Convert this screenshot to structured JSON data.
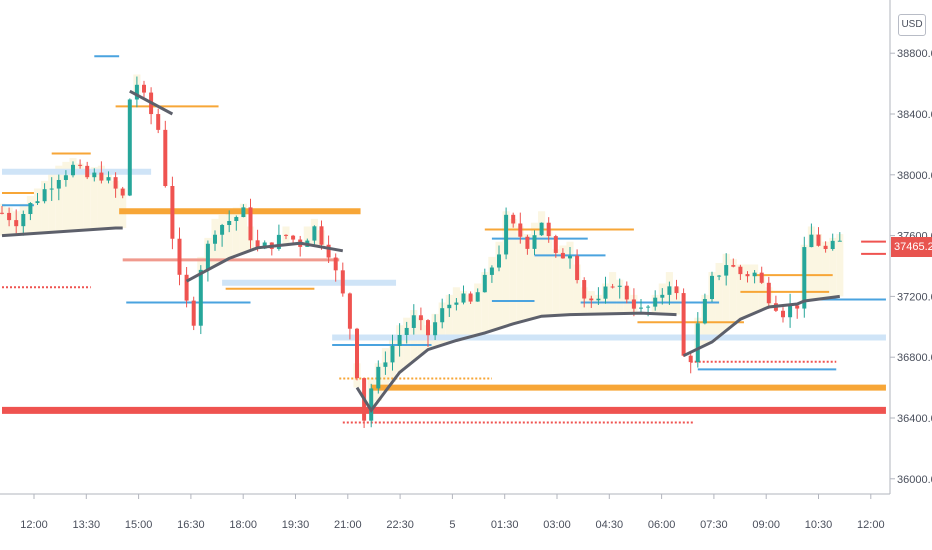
{
  "chart_data": {
    "type": "candlestick",
    "currency": "USD",
    "last_price": "37465.22",
    "ylim": [
      35900,
      39150
    ],
    "y_ticks": [
      "36000.00",
      "36400.00",
      "36800.00",
      "37200.00",
      "37600.00",
      "38000.00",
      "38400.00",
      "38800.00"
    ],
    "x_ticks": [
      "12:00",
      "13:30",
      "15:00",
      "16:30",
      "18:00",
      "19:30",
      "21:00",
      "22:30",
      "5",
      "01:30",
      "03:00",
      "04:30",
      "06:00",
      "07:30",
      "09:00",
      "10:30",
      "12:00"
    ],
    "close_path": [
      [
        0,
        37750
      ],
      [
        2,
        37700
      ],
      [
        4,
        37800
      ],
      [
        6,
        37900
      ],
      [
        8,
        38000
      ],
      [
        10,
        38050
      ],
      [
        12,
        37980
      ],
      [
        14,
        38000
      ],
      [
        16,
        37900
      ],
      [
        17,
        37850
      ],
      [
        18,
        38500
      ],
      [
        19,
        38600
      ],
      [
        20,
        38500
      ],
      [
        22,
        38300
      ],
      [
        24,
        37600
      ],
      [
        25,
        37300
      ],
      [
        26,
        37150
      ],
      [
        27,
        37050
      ],
      [
        28,
        37400
      ],
      [
        30,
        37650
      ],
      [
        32,
        37700
      ],
      [
        34,
        37750
      ],
      [
        35,
        37600
      ],
      [
        36,
        37500
      ],
      [
        38,
        37550
      ],
      [
        40,
        37600
      ],
      [
        42,
        37550
      ],
      [
        44,
        37650
      ],
      [
        46,
        37500
      ],
      [
        48,
        37200
      ],
      [
        49,
        37000
      ],
      [
        50,
        36700
      ],
      [
        51,
        36400
      ],
      [
        52,
        36600
      ],
      [
        54,
        36800
      ],
      [
        56,
        36950
      ],
      [
        58,
        37050
      ],
      [
        60,
        36950
      ],
      [
        62,
        37100
      ],
      [
        64,
        37200
      ],
      [
        66,
        37150
      ],
      [
        68,
        37300
      ],
      [
        70,
        37500
      ],
      [
        71,
        37700
      ],
      [
        72,
        37650
      ],
      [
        74,
        37550
      ],
      [
        76,
        37700
      ],
      [
        78,
        37450
      ],
      [
        80,
        37500
      ],
      [
        82,
        37200
      ],
      [
        84,
        37150
      ],
      [
        86,
        37300
      ],
      [
        88,
        37200
      ],
      [
        90,
        37100
      ],
      [
        92,
        37150
      ],
      [
        94,
        37300
      ],
      [
        95,
        37200
      ],
      [
        96,
        36800
      ],
      [
        97,
        36800
      ],
      [
        98,
        37000
      ],
      [
        100,
        37300
      ],
      [
        102,
        37420
      ],
      [
        104,
        37350
      ],
      [
        106,
        37350
      ],
      [
        108,
        37200
      ],
      [
        110,
        37100
      ],
      [
        112,
        37150
      ],
      [
        113,
        37480
      ],
      [
        114,
        37600
      ],
      [
        116,
        37500
      ],
      [
        118,
        37550
      ]
    ],
    "vwap_path": [
      [
        0,
        37600
      ],
      [
        16,
        37650
      ],
      [
        17,
        37650
      ],
      [
        18,
        38550
      ],
      [
        24,
        38400
      ],
      [
        26,
        37300
      ],
      [
        28,
        37350
      ],
      [
        32,
        37450
      ],
      [
        36,
        37520
      ],
      [
        42,
        37550
      ],
      [
        48,
        37500
      ],
      [
        50,
        36600
      ],
      [
        52,
        36450
      ],
      [
        56,
        36700
      ],
      [
        60,
        36850
      ],
      [
        64,
        36910
      ],
      [
        68,
        36960
      ],
      [
        72,
        37020
      ],
      [
        76,
        37070
      ],
      [
        80,
        37080
      ],
      [
        90,
        37090
      ],
      [
        95,
        37080
      ],
      [
        96,
        36810
      ],
      [
        100,
        36900
      ],
      [
        104,
        37050
      ],
      [
        108,
        37130
      ],
      [
        112,
        37150
      ],
      [
        113,
        37170
      ],
      [
        118,
        37200
      ]
    ],
    "levels": [
      {
        "price": 38780,
        "x0": 13,
        "x1": 16.5,
        "color": "#4aa3df",
        "w": 2
      },
      {
        "price": 38450,
        "x0": 16,
        "x1": 30.5,
        "color": "#f7a637",
        "w": 2
      },
      {
        "price": 38140,
        "x0": 7,
        "x1": 12.5,
        "color": "#f7a637",
        "w": 2
      },
      {
        "price": 38020,
        "x0": 0,
        "x1": 21,
        "color": "#cfe4f7",
        "w": 6
      },
      {
        "price": 37880,
        "x0": 0,
        "x1": 4.5,
        "color": "#f7a637",
        "w": 2
      },
      {
        "price": 37800,
        "x0": 0,
        "x1": 4.5,
        "color": "#4aa3df",
        "w": 2
      },
      {
        "price": 37760,
        "x0": 16.5,
        "x1": 50.5,
        "color": "#f7a637",
        "w": 6
      },
      {
        "price": 37440,
        "x0": 17,
        "x1": 47.5,
        "color": "#f09a8e",
        "w": 3
      },
      {
        "price": 37290,
        "x0": 31,
        "x1": 55.5,
        "color": "#cfe4f7",
        "w": 6
      },
      {
        "price": 37260,
        "x0": 0,
        "x1": 12.5,
        "color": "#ef5350",
        "w": 2,
        "dash": true
      },
      {
        "price": 37160,
        "x0": 17.5,
        "x1": 35,
        "color": "#4aa3df",
        "w": 2
      },
      {
        "price": 37250,
        "x0": 31.5,
        "x1": 44,
        "color": "#f7a637",
        "w": 2
      },
      {
        "price": 37640,
        "x0": 68,
        "x1": 89,
        "color": "#f7a637",
        "w": 2
      },
      {
        "price": 37580,
        "x0": 69,
        "x1": 82.5,
        "color": "#4aa3df",
        "w": 2
      },
      {
        "price": 37470,
        "x0": 75,
        "x1": 85,
        "color": "#4aa3df",
        "w": 2
      },
      {
        "price": 37170,
        "x0": 69,
        "x1": 75,
        "color": "#4aa3df",
        "w": 2
      },
      {
        "price": 37160,
        "x0": 81.5,
        "x1": 101,
        "color": "#4aa3df",
        "w": 2
      },
      {
        "price": 37030,
        "x0": 89.5,
        "x1": 104.5,
        "color": "#f7a637",
        "w": 2
      },
      {
        "price": 37230,
        "x0": 104,
        "x1": 116.5,
        "color": "#f7a637",
        "w": 2
      },
      {
        "price": 37340,
        "x0": 106,
        "x1": 117,
        "color": "#f7a637",
        "w": 2
      },
      {
        "price": 37180,
        "x0": 115,
        "x1": 124.5,
        "color": "#4aa3df",
        "w": 2
      },
      {
        "price": 37480,
        "x0": 121,
        "x1": 124.5,
        "color": "#ef5350",
        "w": 2
      },
      {
        "price": 37560,
        "x0": 121,
        "x1": 124.5,
        "color": "#ef5350",
        "w": 2
      },
      {
        "price": 36930,
        "x0": 46.5,
        "x1": 124.5,
        "color": "#cfe4f7",
        "w": 6
      },
      {
        "price": 36880,
        "x0": 46.5,
        "x1": 60.5,
        "color": "#4aa3df",
        "w": 2
      },
      {
        "price": 36770,
        "x0": 97,
        "x1": 117.5,
        "color": "#ef5350",
        "w": 2,
        "dash": true
      },
      {
        "price": 36720,
        "x0": 98,
        "x1": 117.5,
        "color": "#4aa3df",
        "w": 2
      },
      {
        "price": 36660,
        "x0": 47.5,
        "x1": 69,
        "color": "#f7a637",
        "w": 2,
        "dash": true
      },
      {
        "price": 36600,
        "x0": 52,
        "x1": 124.5,
        "color": "#f7a637",
        "w": 6
      },
      {
        "price": 36450,
        "x0": 0,
        "x1": 124.5,
        "color": "#ef5350",
        "w": 7
      },
      {
        "price": 36370,
        "x0": 48,
        "x1": 97.5,
        "color": "#ef5350",
        "w": 2,
        "dash": true
      }
    ]
  }
}
